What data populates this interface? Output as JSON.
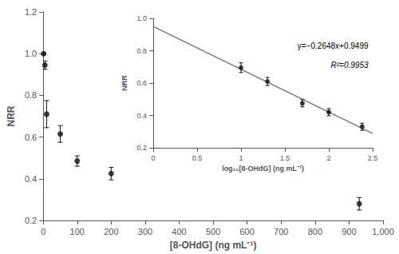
{
  "chart_data": [
    {
      "type": "scatter",
      "xlabel": "[8-OHdG] (ng mL⁻¹)",
      "ylabel": "NRR",
      "x": [
        1,
        5,
        10,
        50,
        100,
        200,
        930
      ],
      "values": [
        1.0,
        0.945,
        0.71,
        0.615,
        0.485,
        0.425,
        0.28
      ],
      "yerr": [
        0.005,
        0.02,
        0.065,
        0.04,
        0.025,
        0.03,
        0.03
      ],
      "xlim": [
        0,
        1000
      ],
      "ylim": [
        0.2,
        1.2
      ],
      "xticks": [
        0,
        100,
        200,
        300,
        400,
        500,
        600,
        700,
        800,
        900,
        {
          "value": 1000,
          "label": "1,000"
        }
      ],
      "yticks": [
        0.2,
        0.4,
        0.6,
        0.8,
        {
          "value": 1.0,
          "label": "1.0"
        },
        1.2
      ],
      "color": "#111111",
      "marker": "circle",
      "grid": false
    },
    {
      "type": "scatter",
      "xlabel": "log₁₀[8-OHdG] (ng mL⁻¹)",
      "ylabel": "NRR",
      "series": [
        {
          "type": "line",
          "color": "#777777",
          "slope": -0.2648,
          "intercept": 0.9499
        },
        {
          "type": "scatter",
          "color": "#111111",
          "marker": "circle",
          "x": [
            1.0,
            1.301,
            1.699,
            2.0,
            2.38
          ],
          "values": [
            0.695,
            0.61,
            0.475,
            0.42,
            0.33
          ],
          "yerr": [
            0.03,
            0.025,
            0.022,
            0.022,
            0.022
          ]
        }
      ],
      "xlim": [
        0,
        2.5
      ],
      "ylim": [
        0.2,
        1.0
      ],
      "xticks": [
        0,
        0.5,
        1,
        1.5,
        2,
        2.5
      ],
      "yticks": [
        0.2,
        0.4,
        0.6,
        0.8,
        {
          "value": 1.0,
          "label": "1.0"
        }
      ],
      "annotations": [
        "y=−0.2648x+0.9499",
        "R²=0.9953"
      ],
      "grid": false
    }
  ]
}
